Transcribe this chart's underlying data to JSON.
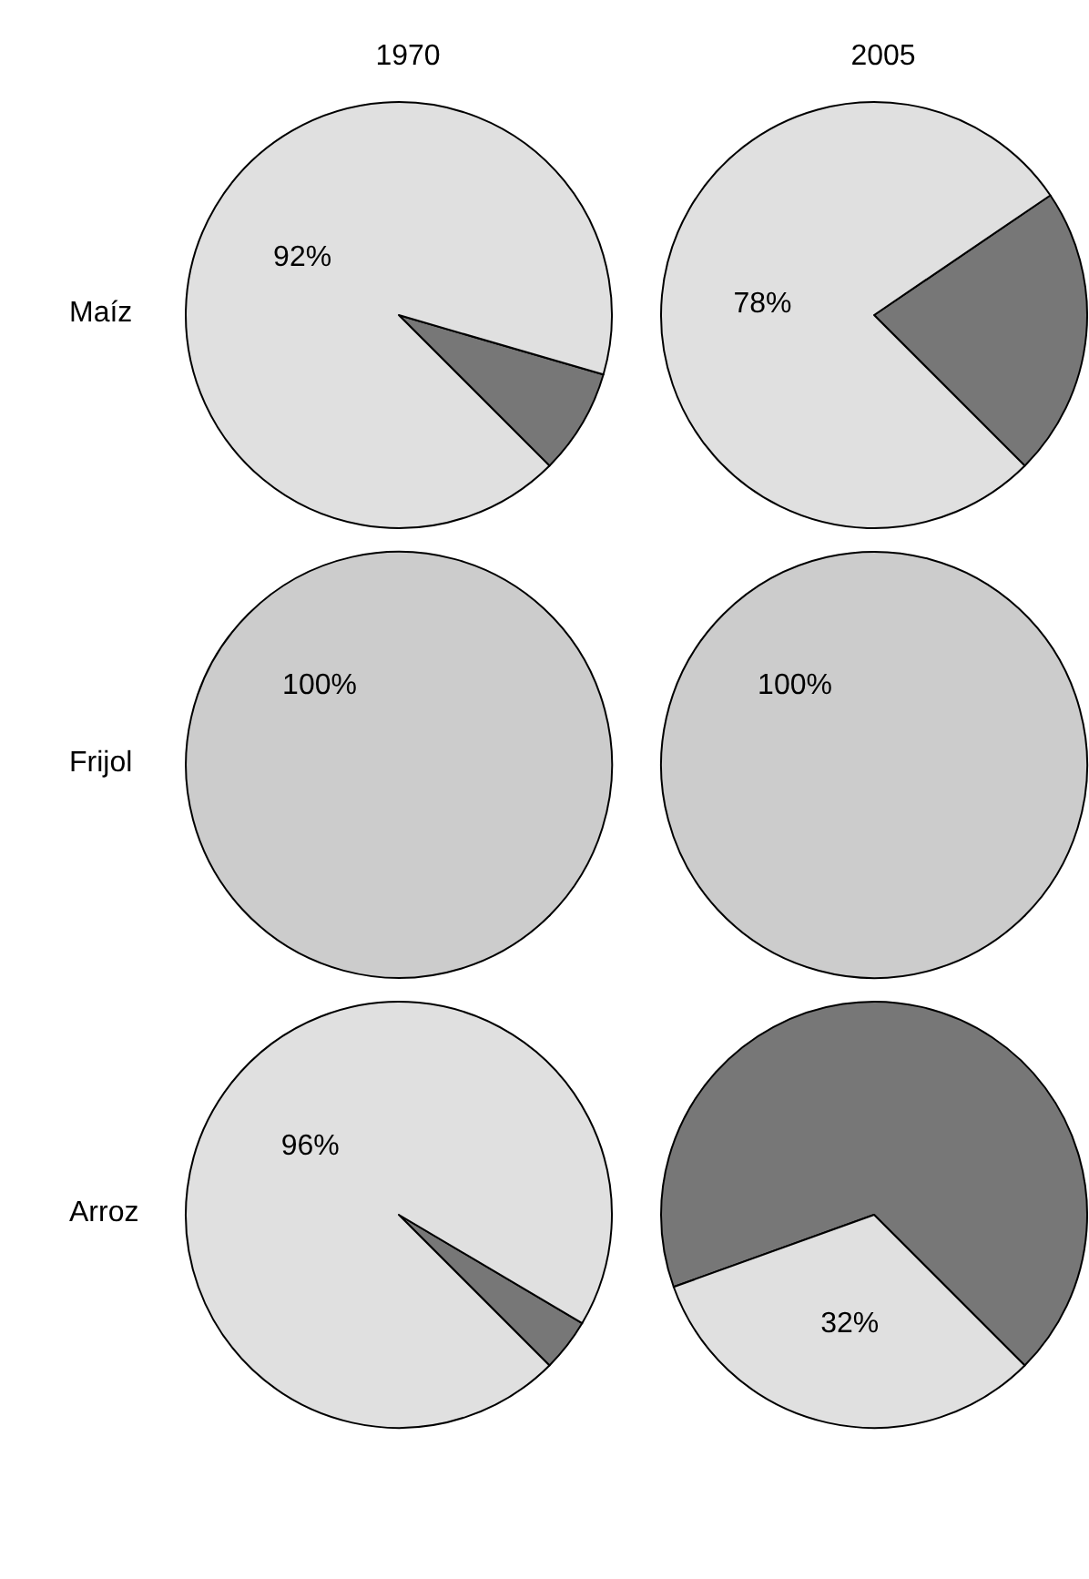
{
  "chart_data": [
    {
      "type": "pie",
      "title": "1970",
      "ylabel": "Maíz",
      "categories": [
        null,
        null
      ],
      "values": [
        8,
        92
      ],
      "colors": [
        "#777777",
        "#e0e0e0"
      ],
      "value_labels": [
        null,
        "92%"
      ]
    },
    {
      "type": "pie",
      "title": "2005",
      "categories": [
        null,
        null
      ],
      "values": [
        22,
        78
      ],
      "colors": [
        "#777777",
        "#e0e0e0"
      ],
      "value_labels": [
        null,
        "78%"
      ]
    },
    {
      "type": "pie",
      "ylabel": "Frijol",
      "categories": [
        null,
        null
      ],
      "values": [
        0,
        100
      ],
      "colors": [
        "#777777",
        "#cccccc"
      ],
      "value_labels": [
        null,
        "100%"
      ]
    },
    {
      "type": "pie",
      "categories": [
        null,
        null
      ],
      "values": [
        0,
        100
      ],
      "colors": [
        "#777777",
        "#cccccc"
      ],
      "value_labels": [
        null,
        "100%"
      ]
    },
    {
      "type": "pie",
      "ylabel": "Arroz",
      "categories": [
        null,
        null
      ],
      "values": [
        4,
        96
      ],
      "colors": [
        "#777777",
        "#e0e0e0"
      ],
      "value_labels": [
        null,
        "96%"
      ]
    },
    {
      "type": "pie",
      "categories": [
        null,
        null
      ],
      "values": [
        68,
        32
      ],
      "colors": [
        "#777777",
        "#e0e0e0"
      ],
      "value_labels": [
        null,
        "32%"
      ]
    }
  ]
}
